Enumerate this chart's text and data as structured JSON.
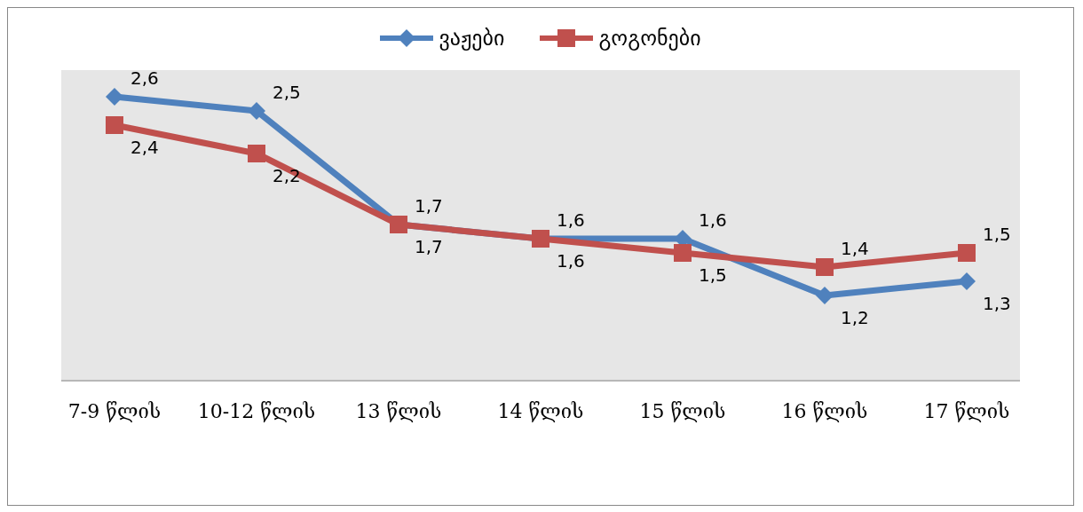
{
  "chart_data": {
    "type": "line",
    "categories": [
      "7-9 წლის",
      "10-12 წლის",
      "13 წლის",
      "14 წლის",
      "15 წლის",
      "16 წლის",
      "17 წლის"
    ],
    "series": [
      {
        "name": "ვაჟები",
        "color": "#4f81bd",
        "marker": "diamond",
        "values": [
          2.6,
          2.5,
          1.7,
          1.6,
          1.6,
          1.2,
          1.3
        ],
        "value_labels": [
          "2,6",
          "2,5",
          "1,7",
          "1,6",
          "1,6",
          "1,2",
          "1,3"
        ]
      },
      {
        "name": "გოგონები",
        "color": "#c0504d",
        "marker": "square",
        "values": [
          2.4,
          2.2,
          1.7,
          1.6,
          1.5,
          1.4,
          1.5
        ],
        "value_labels": [
          "2,4",
          "2,2",
          "1,7",
          "1,6",
          "1,5",
          "1,4",
          "1,5"
        ]
      }
    ],
    "legend": "top",
    "line_style": "solid"
  }
}
